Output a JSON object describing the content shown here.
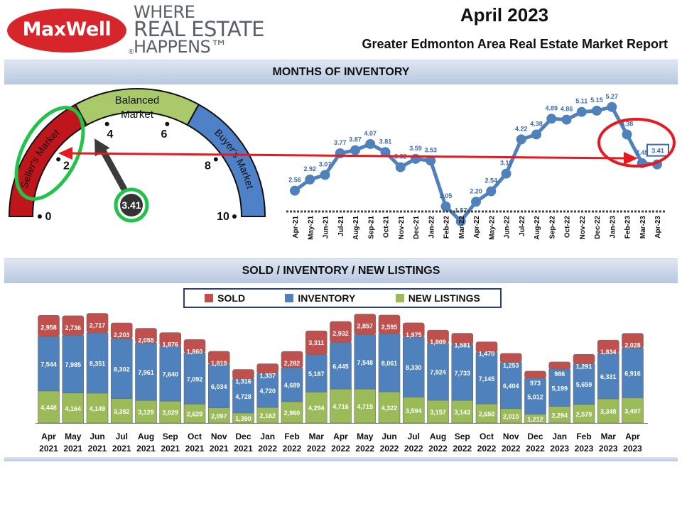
{
  "header": {
    "logo_text": "MaxWell",
    "logo_reg": "®",
    "tagline": [
      "WHERE",
      "REAL ESTATE",
      "HAPPENS™"
    ],
    "month": "April 2023",
    "report_title": "Greater Edmonton Area Real Estate Market Report"
  },
  "sections": {
    "inventory_title": "MONTHS OF INVENTORY",
    "sold_title": "SOLD / INVENTORY / NEW LISTINGS"
  },
  "colors": {
    "sold": "#c0504d",
    "inventory": "#4f81bd",
    "new_listings": "#9bbb59",
    "seller": "#c0161b",
    "balanced": "#a9c96a",
    "buyer": "#4f81c9",
    "line": "#4f81bd",
    "highlight_red": "#e8191e",
    "highlight_green": "#22c34a"
  },
  "chart_data": [
    {
      "type": "gauge",
      "zones": [
        "Seller's Market",
        "Balanced Market",
        "Buyer's Market"
      ],
      "ticks": [
        0,
        2,
        4,
        6,
        8,
        10
      ],
      "range": [
        0,
        10
      ],
      "value": 3.41,
      "value_label": "3.41"
    },
    {
      "type": "line",
      "x": [
        "Apr-21",
        "May-21",
        "Jun-21",
        "Jul-21",
        "Aug-21",
        "Sep-21",
        "Oct-21",
        "Nov-21",
        "Dec-21",
        "Jan-22",
        "Feb-22",
        "Mar-22",
        "Apr-22",
        "May-22",
        "Jun-22",
        "Jul-22",
        "Aug-22",
        "Sep-22",
        "Oct-22",
        "Nov-22",
        "Dec-22",
        "Jan-23",
        "Feb-23",
        "Mar-23",
        "Apr-23"
      ],
      "values": [
        2.56,
        2.92,
        3.07,
        3.77,
        3.87,
        4.07,
        3.81,
        3.32,
        3.59,
        3.53,
        2.05,
        1.57,
        2.2,
        2.54,
        3.11,
        4.22,
        4.38,
        4.89,
        4.86,
        5.11,
        5.15,
        5.27,
        4.38,
        3.45,
        3.41
      ],
      "labels": [
        "2.56",
        "2.92",
        "3.07",
        "3.77",
        "3.87",
        "4.07",
        "3.81",
        "3.32",
        "3.59",
        "3.53",
        "2.05",
        "1.57",
        "2.20",
        "2.54",
        "3.11",
        "4.22",
        "4.38",
        "4.89",
        "4.86",
        "5.11",
        "5.15",
        "5.27",
        "4.38",
        "3.45",
        "3.41"
      ],
      "ylim": [
        0,
        6
      ]
    },
    {
      "type": "bar",
      "stacked": true,
      "categories": [
        [
          "Apr",
          "2021"
        ],
        [
          "May",
          "2021"
        ],
        [
          "Jun",
          "2021"
        ],
        [
          "Jul",
          "2021"
        ],
        [
          "Aug",
          "2021"
        ],
        [
          "Sep",
          "2021"
        ],
        [
          "Oct",
          "2021"
        ],
        [
          "Nov",
          "2021"
        ],
        [
          "Dec",
          "2021"
        ],
        [
          "Jan",
          "2022"
        ],
        [
          "Feb",
          "2022"
        ],
        [
          "Mar",
          "2022"
        ],
        [
          "Apr",
          "2022"
        ],
        [
          "May",
          "2022"
        ],
        [
          "Jun",
          "2022"
        ],
        [
          "Jul",
          "2022"
        ],
        [
          "Aug",
          "2022"
        ],
        [
          "Sep",
          "2022"
        ],
        [
          "Oct",
          "2022"
        ],
        [
          "Nov",
          "2022"
        ],
        [
          "Dec",
          "2022"
        ],
        [
          "Jan",
          "2023"
        ],
        [
          "Feb",
          "2023"
        ],
        [
          "Mar",
          "2023"
        ],
        [
          "Apr",
          "2023"
        ]
      ],
      "series": [
        {
          "name": "NEW LISTINGS",
          "values": [
            4448,
            4164,
            4149,
            3382,
            3129,
            3029,
            2629,
            2097,
            1390,
            2162,
            2960,
            4294,
            4716,
            4715,
            4322,
            3594,
            3157,
            3143,
            2650,
            2010,
            1212,
            2294,
            2579,
            3348,
            3497
          ],
          "labels": [
            "4,448",
            "4,164",
            "4,149",
            "3,382",
            "3,129",
            "3,029",
            "2,629",
            "2,097",
            "1,390",
            "2,162",
            "2,960",
            "4,294",
            "4,716",
            "4,715",
            "4,322",
            "3,594",
            "3,157",
            "3,143",
            "2,650",
            "2,010",
            "1,212",
            "2,294",
            "2,579",
            "3,348",
            "3,497"
          ]
        },
        {
          "name": "INVENTORY",
          "values": [
            7544,
            7985,
            8351,
            8302,
            7961,
            7640,
            7092,
            6034,
            4728,
            4720,
            4689,
            5187,
            6445,
            7548,
            8061,
            8330,
            7924,
            7733,
            7145,
            6404,
            5012,
            5199,
            5659,
            6331,
            6916
          ],
          "labels": [
            "7,544",
            "7,985",
            "8,351",
            "8,302",
            "7,961",
            "7,640",
            "7,092",
            "6,034",
            "4,728",
            "4,720",
            "4,689",
            "5,187",
            "6,445",
            "7,548",
            "8,061",
            "8,330",
            "7,924",
            "7,733",
            "7,145",
            "6,404",
            "5,012",
            "5,199",
            "5,659",
            "6,331",
            "6,916"
          ]
        },
        {
          "name": "SOLD",
          "values": [
            2958,
            2736,
            2717,
            2203,
            2055,
            1876,
            1860,
            1819,
            1316,
            1337,
            2282,
            3311,
            2932,
            2857,
            2595,
            1975,
            1809,
            1581,
            1470,
            1253,
            973,
            986,
            1291,
            1834,
            2028
          ],
          "labels": [
            "2,958",
            "2,736",
            "2,717",
            "2,203",
            "2,055",
            "1,876",
            "1,860",
            "1,819",
            "1,316",
            "1,337",
            "2,282",
            "3,311",
            "2,932",
            "2,857",
            "2,595",
            "1,975",
            "1,809",
            "1,581",
            "1,470",
            "1,253",
            "973",
            "986",
            "1,291",
            "1,834",
            "2,028"
          ]
        }
      ],
      "legend": [
        "SOLD",
        "INVENTORY",
        "NEW LISTINGS"
      ],
      "legend_position": "top-center"
    }
  ]
}
